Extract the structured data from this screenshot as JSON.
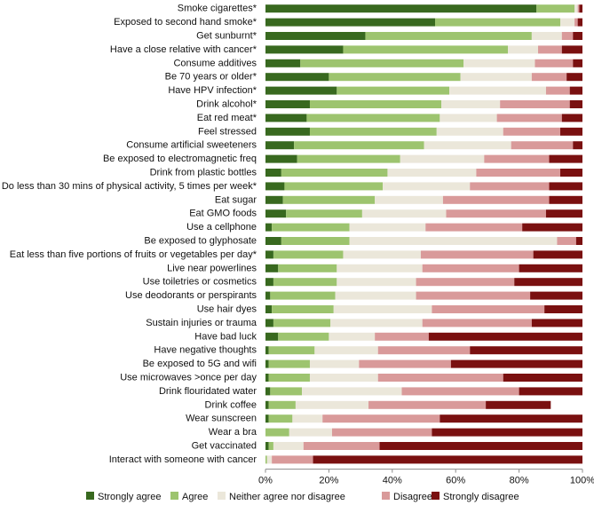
{
  "chart_data": {
    "type": "bar",
    "orientation": "horizontal",
    "stacked": true,
    "normalized": true,
    "xlim": [
      0,
      100
    ],
    "x_ticks": [
      "0%",
      "20%",
      "40%",
      "60%",
      "80%",
      "100%"
    ],
    "grid": false,
    "legend_position": "bottom",
    "categories": [
      "Smoke cigarettes*",
      "Exposed to second hand smoke*",
      "Get sunburnt*",
      "Have a close relative with cancer*",
      "Consume additives",
      "Be 70 years or older*",
      "Have HPV infection*",
      "Drink alcohol*",
      "Eat red meat*",
      "Feel stressed",
      "Consume artificial sweeteners",
      "Be exposed to electromagnetic freq",
      "Drink from plastic bottles",
      "Do less than 30 mins of physical activity, 5 times per week*",
      "Eat sugar",
      "Eat GMO foods",
      "Use a cellphone",
      "Be exposed to glyphosate",
      "Eat less than five portions of fruits or vegetables per day*",
      "Live near powerlines",
      "Use toiletries or cosmetics",
      "Use deodorants or perspirants",
      "Use hair dyes",
      "Sustain injuries or trauma",
      "Have bad luck",
      "Have negative thoughts",
      "Be exposed to 5G and wifi",
      "Use microwaves >once per day",
      "Drink flouridated water",
      "Drink coffee",
      "Wear sunscreen",
      "Wear a bra",
      "Get vaccinated",
      "Interact with someone with cancer"
    ],
    "series": [
      {
        "name": "Strongly agree",
        "color": "#38691f",
        "values": [
          85.5,
          53.5,
          31.5,
          24.5,
          11,
          20,
          22.5,
          14,
          13,
          14,
          9,
          10,
          5,
          6,
          5.5,
          6.5,
          2,
          5,
          2.5,
          4,
          2.5,
          1.5,
          2,
          2.5,
          4,
          1,
          1,
          1,
          1.5,
          1,
          1,
          0,
          1,
          0
        ]
      },
      {
        "name": "Agree",
        "color": "#9dc46f",
        "values": [
          12,
          39.5,
          52.5,
          52,
          51.5,
          41.5,
          35.5,
          41.5,
          42,
          40,
          41,
          32.5,
          33.5,
          31,
          29,
          24,
          24.5,
          21.5,
          22,
          18.5,
          20,
          20.5,
          19.5,
          18,
          16,
          14.5,
          13,
          13,
          10,
          8.5,
          7.5,
          7.5,
          1.5,
          0.5
        ]
      },
      {
        "name": "Neither agree nor disagree",
        "color": "#ebe7da",
        "values": [
          1,
          4.5,
          9.5,
          9.5,
          22.5,
          22.5,
          30.5,
          18.5,
          18,
          21,
          27.5,
          26.5,
          28,
          27.5,
          21.5,
          26.5,
          24,
          65.5,
          24.5,
          27,
          25,
          25.5,
          31,
          29,
          14.5,
          20,
          15.5,
          21.5,
          31.5,
          23,
          9.5,
          13.5,
          9.5,
          1.5
        ]
      },
      {
        "name": "Disagree",
        "color": "#d99a9a",
        "values": [
          0.5,
          1,
          3.5,
          7.5,
          12,
          11,
          7.5,
          22,
          20.5,
          18,
          19.5,
          20.5,
          26.5,
          25,
          33.5,
          31.5,
          30.5,
          6,
          35.5,
          30.5,
          31,
          36,
          35.5,
          34.5,
          17,
          29,
          29,
          39.5,
          37,
          37,
          37,
          31.5,
          24,
          13
        ]
      },
      {
        "name": "Strongly disagree",
        "color": "#7a1010",
        "values": [
          1,
          1.5,
          3,
          6.5,
          3,
          5,
          4,
          4,
          6.5,
          7,
          3,
          10.5,
          7,
          10.5,
          10.5,
          11.5,
          19,
          2,
          15.5,
          20,
          21.5,
          16.5,
          12,
          16,
          48.5,
          35.5,
          41.5,
          25,
          20,
          20.5,
          45,
          47.5,
          64,
          85
        ]
      }
    ]
  }
}
